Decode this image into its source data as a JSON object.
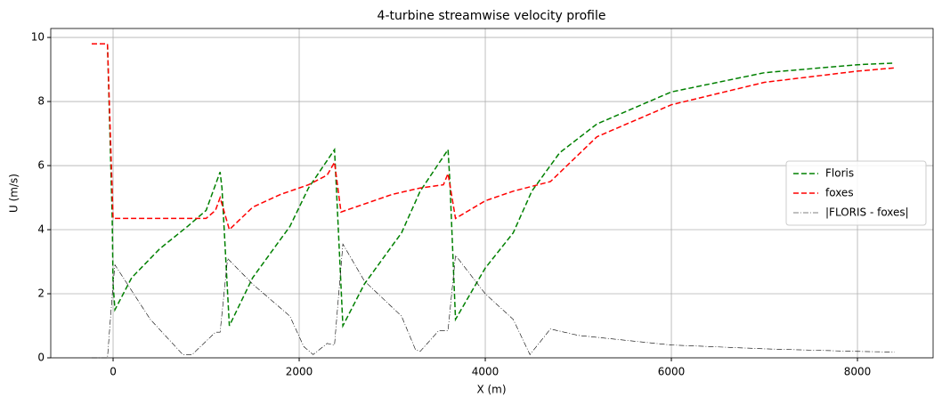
{
  "chart_data": {
    "type": "line",
    "title": "4-turbine streamwise velocity profile",
    "xlabel": "X (m)",
    "ylabel": "U (m/s)",
    "xlim": [
      -670,
      8813
    ],
    "ylim": [
      0,
      10.28
    ],
    "xticks": [
      0,
      2000,
      4000,
      6000,
      8000
    ],
    "yticks": [
      0,
      2,
      4,
      6,
      8,
      10
    ],
    "grid": true,
    "legend": "right",
    "series": [
      {
        "name": "Floris",
        "color": "#008000",
        "linestyle": "dashed",
        "x": [
          -230,
          -60,
          -10,
          0,
          20,
          200,
          500,
          800,
          1000,
          1150,
          1170,
          1250,
          1500,
          1800,
          1900,
          2100,
          2380,
          2400,
          2470,
          2700,
          3000,
          3100,
          3300,
          3600,
          3620,
          3680,
          4000,
          4300,
          4500,
          4800,
          5200,
          6000,
          7000,
          8000,
          8400
        ],
        "values": [
          9.8,
          9.8,
          4.4,
          2.3,
          1.5,
          2.5,
          3.4,
          4.1,
          4.6,
          5.8,
          5.3,
          1.0,
          2.5,
          3.7,
          4.1,
          5.3,
          6.5,
          5.3,
          1.0,
          2.3,
          3.5,
          3.9,
          5.2,
          6.5,
          5.5,
          1.2,
          2.8,
          3.9,
          5.2,
          6.4,
          7.3,
          8.3,
          8.9,
          9.15,
          9.2
        ]
      },
      {
        "name": "foxes",
        "color": "#ff0000",
        "linestyle": "dashed",
        "x": [
          -230,
          -60,
          0,
          1000,
          1100,
          1150,
          1250,
          1500,
          1800,
          2100,
          2300,
          2380,
          2450,
          2700,
          3000,
          3300,
          3550,
          3600,
          3680,
          4000,
          4300,
          4700,
          5200,
          6000,
          7000,
          8000,
          8400
        ],
        "values": [
          9.8,
          9.8,
          4.35,
          4.35,
          4.6,
          5.0,
          4.0,
          4.7,
          5.1,
          5.4,
          5.7,
          6.1,
          4.55,
          4.8,
          5.1,
          5.3,
          5.4,
          5.75,
          4.35,
          4.9,
          5.2,
          5.5,
          6.9,
          7.9,
          8.6,
          8.95,
          9.05
        ]
      },
      {
        "name": "|FLORIS - foxes|",
        "color": "#000000",
        "linestyle": "dashdot",
        "x": [
          -230,
          -60,
          0,
          20,
          400,
          750,
          850,
          1100,
          1150,
          1230,
          1500,
          1900,
          2050,
          2150,
          2300,
          2380,
          2470,
          2700,
          3100,
          3250,
          3300,
          3500,
          3600,
          3680,
          4000,
          4300,
          4480,
          4700,
          5000,
          6000,
          7000,
          8000,
          8400
        ],
        "values": [
          0,
          0,
          2.3,
          2.9,
          1.2,
          0.1,
          0.1,
          0.8,
          0.8,
          3.1,
          2.3,
          1.3,
          0.35,
          0.1,
          0.45,
          0.4,
          3.55,
          2.4,
          1.3,
          0.25,
          0.2,
          0.85,
          0.85,
          3.2,
          2.0,
          1.2,
          0.1,
          0.9,
          0.7,
          0.4,
          0.28,
          0.2,
          0.18
        ]
      }
    ]
  }
}
